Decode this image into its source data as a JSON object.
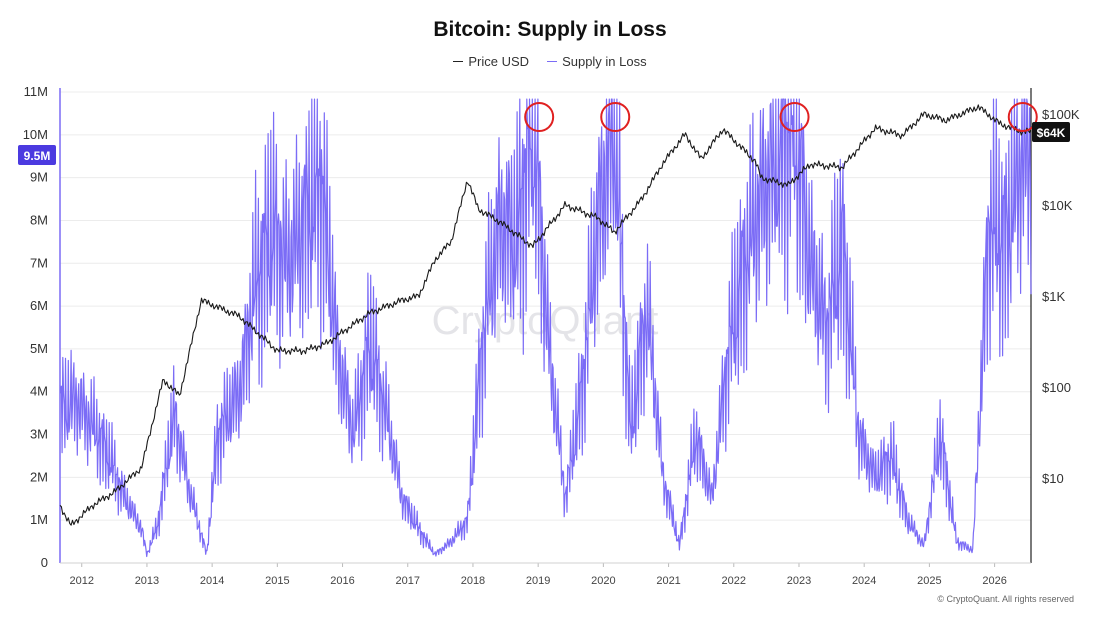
{
  "chart_data": {
    "type": "line",
    "title": "Bitcoin: Supply in Loss",
    "legend": [
      "Price USD",
      "Supply in Loss"
    ],
    "legend_placement": "top-center",
    "grid": true,
    "colors": {
      "price": "#1a1a1a",
      "supply": "#7b6cf6",
      "highlight": "#e02020",
      "current_tag": "#111111",
      "left_tag": "#4b3ae0"
    },
    "x_ticks": [
      "2012",
      "2013",
      "2014",
      "2015",
      "2016",
      "2017",
      "2018",
      "2019",
      "2020",
      "2021",
      "2022",
      "2023",
      "2024",
      "2025",
      "2026"
    ],
    "y_left_ticks": [
      "0",
      "1M",
      "2M",
      "3M",
      "4M",
      "5M",
      "6M",
      "7M",
      "8M",
      "9M",
      "10M",
      "11M"
    ],
    "y_left_range": [
      0,
      11000000
    ],
    "y_right_ticks": [
      "$10",
      "$100",
      "$1K",
      "$10K",
      "$100K"
    ],
    "y_right_scale": "log",
    "current_supply_label": "9.5M",
    "current_price_label": "$64K",
    "watermark": "CryptoQuant",
    "credit": "© CryptoQuant. All rights reserved",
    "series": [
      {
        "name": "Supply in Loss",
        "axis": "left",
        "x": [
          "2011-09",
          "2011-12",
          "2012-03",
          "2012-06",
          "2012-09",
          "2012-12",
          "2013-01",
          "2013-03",
          "2013-06",
          "2013-09",
          "2013-12",
          "2014-02",
          "2014-06",
          "2014-09",
          "2014-12",
          "2015-03",
          "2015-06",
          "2015-09",
          "2015-12",
          "2016-03",
          "2016-06",
          "2016-09",
          "2016-12",
          "2017-03",
          "2017-06",
          "2017-09",
          "2017-12",
          "2018-03",
          "2018-06",
          "2018-09",
          "2018-12",
          "2019-03",
          "2019-06",
          "2019-09",
          "2019-12",
          "2020-03",
          "2020-06",
          "2020-09",
          "2020-12",
          "2021-03",
          "2021-06",
          "2021-09",
          "2021-12",
          "2022-03",
          "2022-06",
          "2022-09",
          "2022-12",
          "2023-03",
          "2023-06",
          "2023-09",
          "2023-12",
          "2024-03",
          "2024-06",
          "2024-09",
          "2024-12",
          "2025-03",
          "2025-06",
          "2025-09",
          "2025-12",
          "2026-03",
          "2026-06"
        ],
        "values": [
          3600000,
          3800000,
          3200000,
          2500000,
          1500000,
          800000,
          200000,
          900000,
          3500000,
          1600000,
          200000,
          3000000,
          4000000,
          6500000,
          7800000,
          7000000,
          8000000,
          9000000,
          5000000,
          3000000,
          5200000,
          3500000,
          1500000,
          800000,
          200000,
          500000,
          1000000,
          5500000,
          8000000,
          7500000,
          10500000,
          5000000,
          1500000,
          4000000,
          8000000,
          10300000,
          3000000,
          6000000,
          2000000,
          400000,
          3000000,
          1500000,
          5000000,
          7000000,
          8500000,
          9500000,
          10500000,
          7000000,
          5500000,
          7500000,
          3000000,
          2000000,
          2500000,
          1000000,
          400000,
          3000000,
          500000,
          300000,
          8000000,
          7500000,
          9500000
        ]
      },
      {
        "name": "Price USD",
        "axis": "right",
        "x": [
          "2011-09",
          "2011-11",
          "2012-03",
          "2012-07",
          "2012-12",
          "2013-03",
          "2013-04",
          "2013-07",
          "2013-11",
          "2014-01",
          "2014-06",
          "2015-01",
          "2015-06",
          "2015-10",
          "2016-06",
          "2016-12",
          "2017-03",
          "2017-06",
          "2017-09",
          "2017-12",
          "2018-02",
          "2018-06",
          "2018-12",
          "2019-06",
          "2019-12",
          "2020-03",
          "2020-08",
          "2020-12",
          "2021-04",
          "2021-07",
          "2021-11",
          "2022-05",
          "2022-06",
          "2022-11",
          "2023-03",
          "2023-09",
          "2024-03",
          "2024-08",
          "2024-12",
          "2025-04",
          "2025-10",
          "2026-02",
          "2026-06"
        ],
        "values": [
          5,
          3,
          5,
          7,
          13,
          70,
          120,
          80,
          900,
          800,
          600,
          250,
          250,
          300,
          650,
          900,
          1000,
          2500,
          4000,
          19000,
          9000,
          6500,
          3500,
          10000,
          7200,
          5000,
          11500,
          29000,
          60000,
          32000,
          68000,
          30000,
          20000,
          16500,
          28000,
          26000,
          70000,
          58000,
          100000,
          85000,
          120000,
          78000,
          64000
        ]
      }
    ],
    "highlighted_peaks": [
      "2019-01",
      "2020-03",
      "2022-12",
      "2026-06"
    ]
  }
}
